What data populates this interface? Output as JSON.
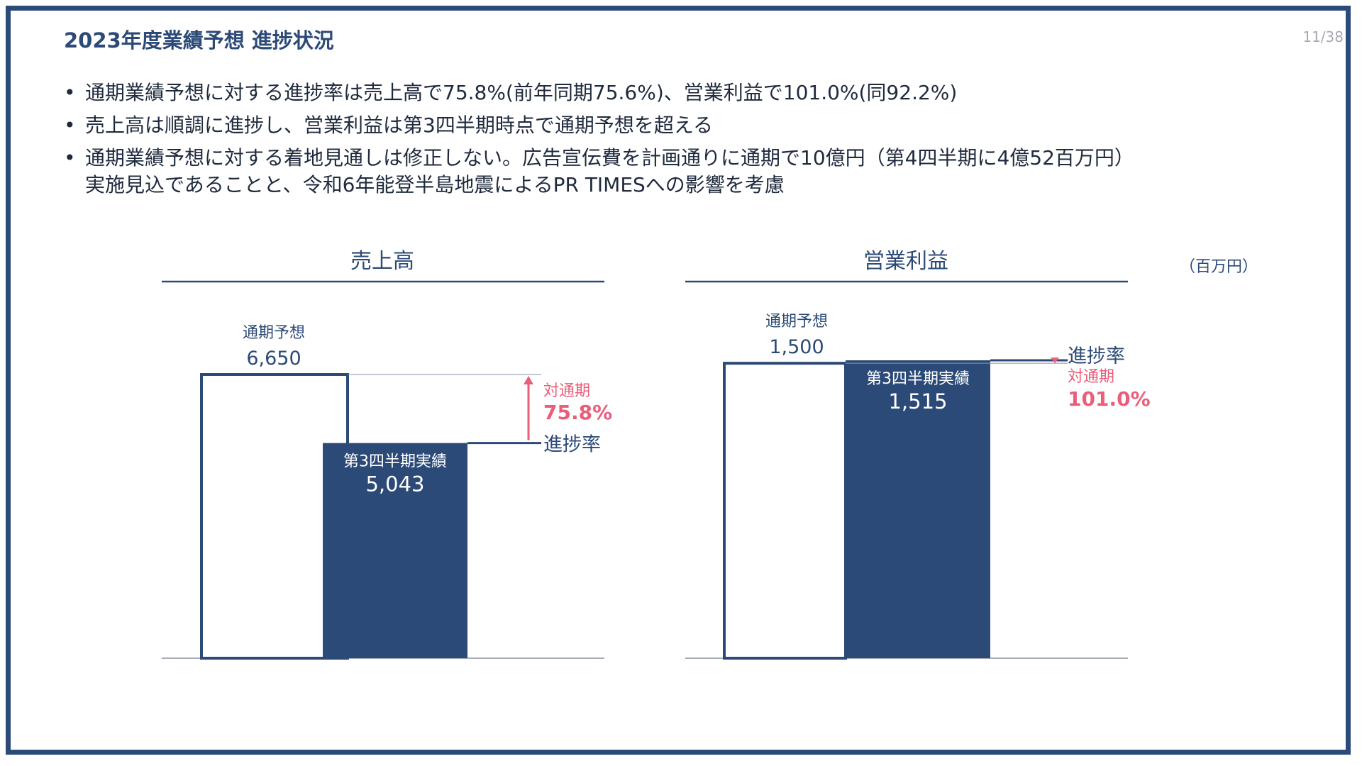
{
  "slide": {
    "title": "2023年度業績予想 進捗状況",
    "page_number": "11/38",
    "bullets": [
      {
        "lines": [
          "通期業績予想に対する進捗率は売上高で75.8%(前年同期75.6%)、営業利益で101.0%(同92.2%)"
        ]
      },
      {
        "lines": [
          "売上高は順調に進捗し、営業利益は第3四半期時点で通期予想を超える"
        ]
      },
      {
        "lines": [
          "通期業績予想に対する着地見通しは修正しない。広告宣伝費を計画通りに通期で10億円（第4四半期に4億52百万円）",
          "実施見込であることと、令和6年能登半島地震によるPR TIMESへの影響を考慮"
        ]
      }
    ],
    "unit": "（百万円）"
  },
  "colors": {
    "brand": "#2c4a77",
    "accent": "#ea5e7a",
    "text": "#1f2a3d",
    "axis": "#8a93a3"
  },
  "chart_data": [
    {
      "type": "bar",
      "title": "売上高",
      "categories": [
        "通期予想",
        "第3四半期実績"
      ],
      "values": [
        6650,
        5043
      ],
      "labels": [
        "6,650",
        "5,043"
      ],
      "ylim": [
        0,
        6650
      ],
      "progress_label": "進捗率",
      "ratio_label": "対通期",
      "ratio_value": "75.8%",
      "ratio_position": "right-of-bars",
      "arrow_direction": "up"
    },
    {
      "type": "bar",
      "title": "営業利益",
      "categories": [
        "通期予想",
        "第3四半期実績"
      ],
      "values": [
        1500,
        1515
      ],
      "labels": [
        "1,500",
        "1,515"
      ],
      "ylim": [
        0,
        1515
      ],
      "progress_label": "進捗率",
      "ratio_label": "対通期",
      "ratio_value": "101.0%",
      "ratio_position": "right-of-bars",
      "arrow_direction": "down"
    }
  ]
}
